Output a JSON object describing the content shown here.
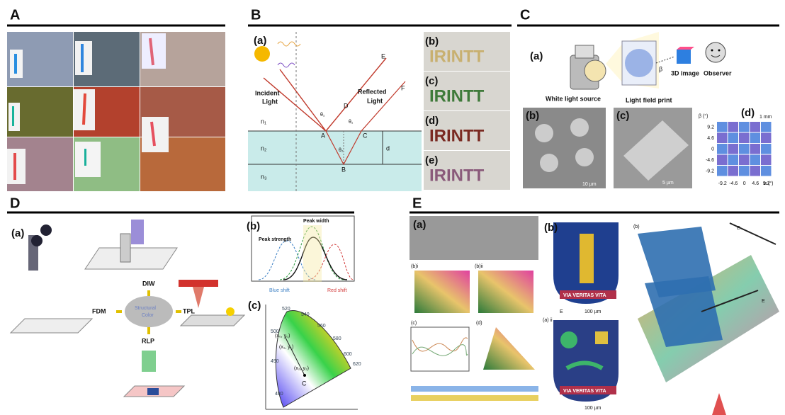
{
  "panels": {
    "A": {
      "label": "A"
    },
    "B": {
      "label": "B",
      "sub_a": "(a)",
      "incident": [
        "Incident",
        "Light"
      ],
      "reflected": [
        "Reflected",
        "Light"
      ],
      "rays": [
        "E",
        "F"
      ],
      "points": [
        "D",
        "A",
        "C",
        "B"
      ],
      "thickness": "d",
      "media": [
        "n₁",
        "n₂",
        "n₃"
      ],
      "angles": [
        "θ₁",
        "θ₁",
        "θ₂"
      ],
      "photos": [
        {
          "label": "(b)",
          "text": "IRINTT"
        },
        {
          "label": "(c)",
          "text": "IRINTT"
        },
        {
          "label": "(d)",
          "text": "IRINTT"
        },
        {
          "label": "(e)",
          "text": "IRINTT"
        }
      ]
    },
    "C": {
      "label": "C",
      "sub_a": "(a)",
      "source": "White light source",
      "print": "Light field print",
      "image": "3D image",
      "observer": "Observer",
      "beta": "β",
      "sub_b": "(b)",
      "scale_b": "10 µm",
      "sub_c": "(c)",
      "scale_c": "5 µm",
      "sub_d": "(d)",
      "scale_d": "1 mm",
      "y_axis": "β (°)",
      "x_axis": "α (°)",
      "yticks": [
        "9.2",
        "4.6",
        "0",
        "-4.6",
        "-9.2"
      ],
      "xticks": [
        "-9.2",
        "-4.6",
        "0",
        "4.6",
        "9.2"
      ]
    },
    "D": {
      "label": "D",
      "sub_a": "(a)",
      "methods": [
        "DIW",
        "FDM",
        "TPL",
        "RLP"
      ],
      "center": [
        "Structural",
        "Color"
      ],
      "sub_b": "(b)",
      "peak_width": "Peak width",
      "peak_strength": "Peak strength",
      "blue_shift": "Blue shift",
      "red_shift": "Red shift",
      "sub_c": "(c)",
      "coords": [
        "(x₀, y₀)",
        "(x₁, y₁)",
        "(x₂, y₂)"
      ],
      "white_point": "C",
      "wavelengths": [
        "520",
        "540",
        "560",
        "580",
        "600",
        "620",
        "500",
        "490",
        "480"
      ]
    },
    "E": {
      "label": "E",
      "sub_a": "(a)",
      "sub_bi": "(b)i",
      "sub_bii": "(b)ii",
      "sub_c": "(c)",
      "sub_d": "(d)",
      "sub_b": "(b)",
      "motto": "VIA VERITAS VITA",
      "scale": "100 µm",
      "field": "E",
      "sub_aii": "(a) ii",
      "sub_b3d": "(b)"
    }
  }
}
